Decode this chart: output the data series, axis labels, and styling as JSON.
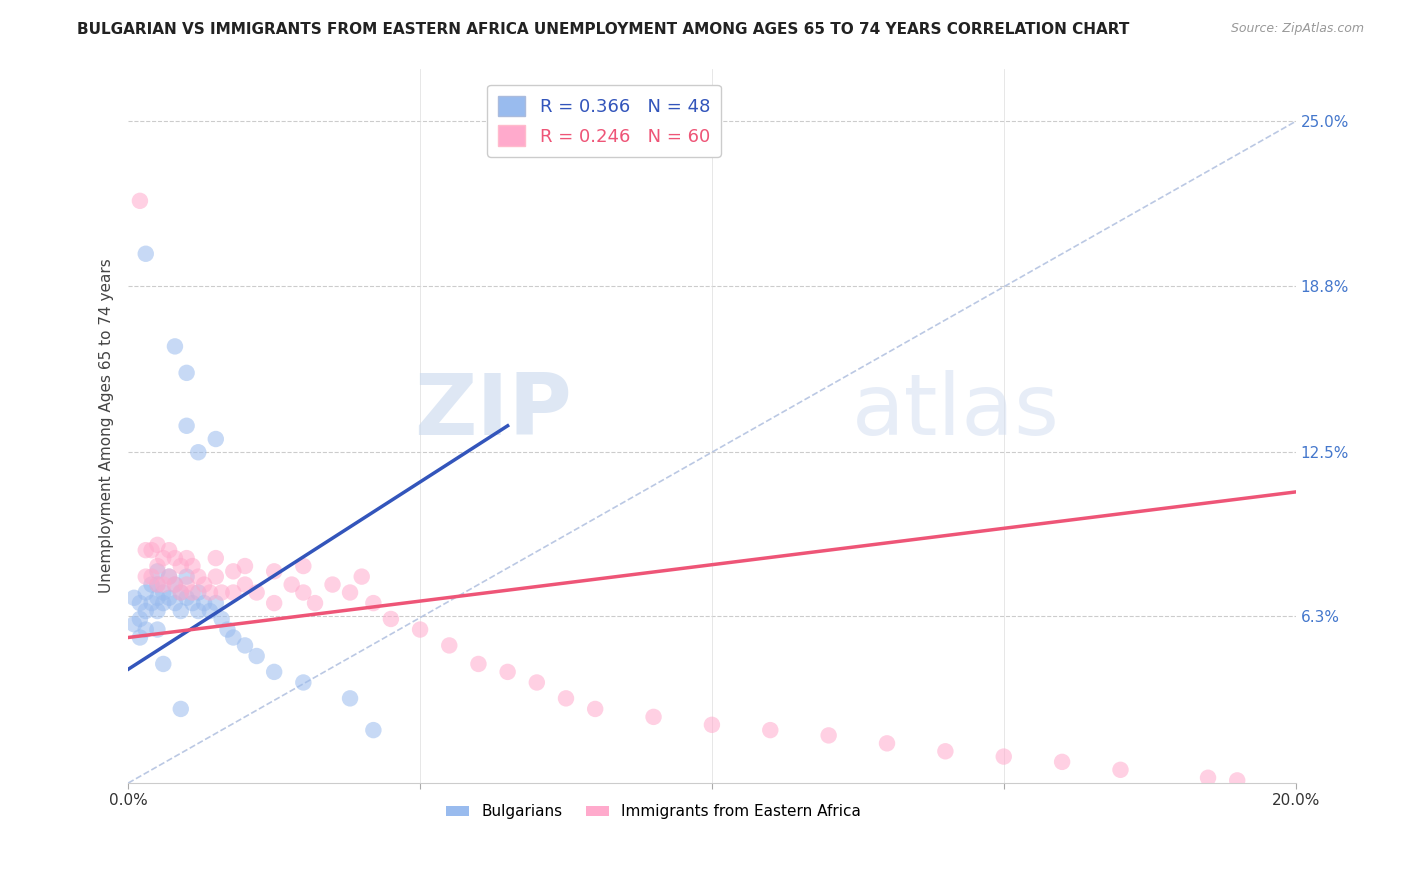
{
  "title": "BULGARIAN VS IMMIGRANTS FROM EASTERN AFRICA UNEMPLOYMENT AMONG AGES 65 TO 74 YEARS CORRELATION CHART",
  "source": "Source: ZipAtlas.com",
  "ylabel": "Unemployment Among Ages 65 to 74 years",
  "xlim": [
    0,
    0.2
  ],
  "ylim": [
    0,
    0.27
  ],
  "xticks": [
    0.0,
    0.05,
    0.1,
    0.15,
    0.2
  ],
  "xticklabels": [
    "0.0%",
    "",
    "",
    "",
    "20.0%"
  ],
  "yticks_right": [
    0.063,
    0.125,
    0.188,
    0.25
  ],
  "yticklabels_right": [
    "6.3%",
    "12.5%",
    "18.8%",
    "25.0%"
  ],
  "legend_label_blue": "Bulgarians",
  "legend_label_pink": "Immigrants from Eastern Africa",
  "blue_color": "#99BBEE",
  "pink_color": "#FFAACC",
  "blue_line_color": "#3355BB",
  "pink_line_color": "#EE5577",
  "watermark_zip": "ZIP",
  "watermark_atlas": "atlas",
  "blue_scatter_x": [
    0.003,
    0.008,
    0.01,
    0.01,
    0.012,
    0.015,
    0.001,
    0.001,
    0.002,
    0.002,
    0.002,
    0.003,
    0.003,
    0.003,
    0.004,
    0.004,
    0.005,
    0.005,
    0.005,
    0.005,
    0.005,
    0.006,
    0.006,
    0.007,
    0.007,
    0.008,
    0.008,
    0.009,
    0.009,
    0.01,
    0.01,
    0.011,
    0.012,
    0.012,
    0.013,
    0.014,
    0.015,
    0.016,
    0.017,
    0.018,
    0.02,
    0.022,
    0.025,
    0.03,
    0.038,
    0.042,
    0.006,
    0.009
  ],
  "blue_scatter_y": [
    0.2,
    0.165,
    0.155,
    0.135,
    0.125,
    0.13,
    0.07,
    0.06,
    0.068,
    0.062,
    0.055,
    0.072,
    0.065,
    0.058,
    0.075,
    0.068,
    0.08,
    0.075,
    0.07,
    0.065,
    0.058,
    0.072,
    0.068,
    0.078,
    0.07,
    0.075,
    0.068,
    0.072,
    0.065,
    0.078,
    0.07,
    0.068,
    0.072,
    0.065,
    0.068,
    0.065,
    0.068,
    0.062,
    0.058,
    0.055,
    0.052,
    0.048,
    0.042,
    0.038,
    0.032,
    0.02,
    0.045,
    0.028
  ],
  "pink_scatter_x": [
    0.002,
    0.003,
    0.003,
    0.004,
    0.004,
    0.005,
    0.005,
    0.005,
    0.006,
    0.006,
    0.007,
    0.007,
    0.008,
    0.008,
    0.009,
    0.009,
    0.01,
    0.01,
    0.011,
    0.011,
    0.012,
    0.013,
    0.014,
    0.015,
    0.015,
    0.016,
    0.018,
    0.018,
    0.02,
    0.02,
    0.022,
    0.025,
    0.025,
    0.028,
    0.03,
    0.03,
    0.032,
    0.035,
    0.038,
    0.04,
    0.042,
    0.045,
    0.05,
    0.055,
    0.06,
    0.065,
    0.07,
    0.075,
    0.08,
    0.09,
    0.1,
    0.11,
    0.12,
    0.13,
    0.14,
    0.15,
    0.16,
    0.17,
    0.185,
    0.19
  ],
  "pink_scatter_y": [
    0.22,
    0.088,
    0.078,
    0.088,
    0.078,
    0.09,
    0.082,
    0.075,
    0.085,
    0.075,
    0.088,
    0.078,
    0.085,
    0.075,
    0.082,
    0.072,
    0.085,
    0.075,
    0.082,
    0.072,
    0.078,
    0.075,
    0.072,
    0.085,
    0.078,
    0.072,
    0.08,
    0.072,
    0.082,
    0.075,
    0.072,
    0.08,
    0.068,
    0.075,
    0.082,
    0.072,
    0.068,
    0.075,
    0.072,
    0.078,
    0.068,
    0.062,
    0.058,
    0.052,
    0.045,
    0.042,
    0.038,
    0.032,
    0.028,
    0.025,
    0.022,
    0.02,
    0.018,
    0.015,
    0.012,
    0.01,
    0.008,
    0.005,
    0.002,
    0.001
  ],
  "blue_line_x": [
    0.0,
    0.065
  ],
  "blue_line_y": [
    0.043,
    0.135
  ],
  "pink_line_x": [
    0.0,
    0.2
  ],
  "pink_line_y": [
    0.055,
    0.11
  ],
  "diag_line_x": [
    0.0,
    0.2
  ],
  "diag_line_y": [
    0.0,
    0.25
  ],
  "background_color": "#FFFFFF",
  "grid_color": "#CCCCCC",
  "title_fontsize": 11,
  "axis_fontsize": 11
}
